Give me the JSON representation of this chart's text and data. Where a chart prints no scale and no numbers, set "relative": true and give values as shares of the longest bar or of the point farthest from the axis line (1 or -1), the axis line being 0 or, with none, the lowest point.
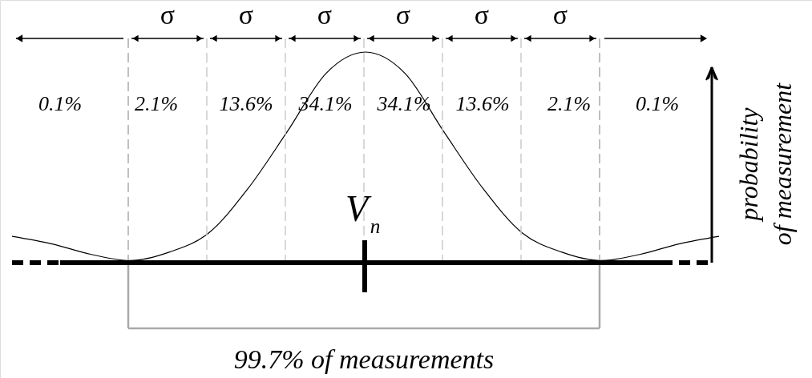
{
  "chart_data": {
    "type": "line",
    "relative": true,
    "categories": [
      null,
      null,
      null,
      null,
      null,
      null,
      null,
      null,
      null,
      null,
      null,
      null,
      null,
      null,
      null,
      null,
      null,
      null,
      null
    ],
    "values": [
      0.125,
      0.09,
      0.04,
      0.01,
      0.05,
      0.14,
      0.35,
      0.62,
      0.9,
      1,
      0.9,
      0.62,
      0.35,
      0.14,
      0.05,
      0.01,
      0.04,
      0.09,
      0.125
    ],
    "color": "#000000",
    "grid": "x",
    "ylabel": "probability of measurement",
    "annotations": [
      "σ",
      "σ",
      "σ",
      "σ",
      "σ",
      "σ",
      "0.1%",
      "2.1%",
      "13.6%",
      "34.1%",
      "34.1%",
      "13.6%",
      "2.1%",
      "0.1%",
      "V$_{n}$",
      "99.7% of measurements"
    ]
  }
}
